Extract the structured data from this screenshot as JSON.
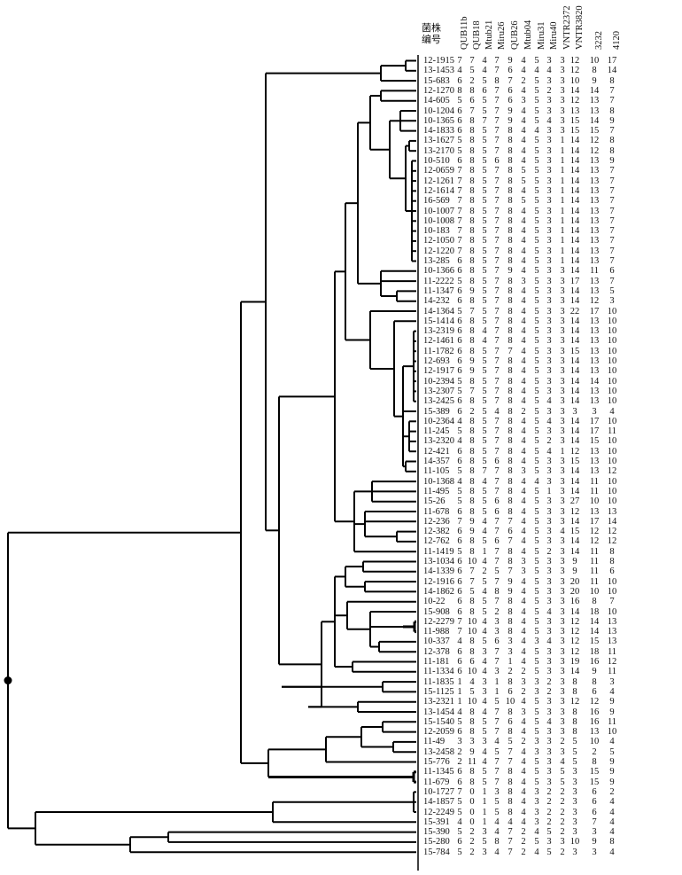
{
  "header": {
    "label_line1": "菌株",
    "label_line2": "编号"
  },
  "columns": [
    "QUB11b",
    "QUB18",
    "Mtub21",
    "Miru26",
    "QUB26",
    "Mtub04",
    "Miru31",
    "Miru40",
    "VNTR2372",
    "VNTR3820",
    "3232",
    "4120"
  ],
  "rows": [
    [
      "12-1915",
      7,
      7,
      4,
      7,
      9,
      4,
      5,
      3,
      3,
      12,
      10,
      17
    ],
    [
      "13-1453",
      4,
      5,
      4,
      7,
      6,
      4,
      4,
      4,
      3,
      12,
      8,
      14
    ],
    [
      "15-683",
      6,
      2,
      5,
      8,
      7,
      2,
      5,
      3,
      3,
      10,
      9,
      8
    ],
    [
      "12-1270",
      8,
      8,
      6,
      7,
      6,
      4,
      5,
      2,
      3,
      14,
      14,
      7
    ],
    [
      "14-605",
      5,
      6,
      5,
      7,
      6,
      3,
      5,
      3,
      3,
      12,
      13,
      7
    ],
    [
      "10-1204",
      6,
      7,
      5,
      7,
      9,
      4,
      5,
      3,
      3,
      13,
      13,
      8
    ],
    [
      "10-1365",
      6,
      8,
      7,
      7,
      9,
      4,
      5,
      4,
      3,
      15,
      14,
      9
    ],
    [
      "14-1833",
      6,
      8,
      5,
      7,
      8,
      4,
      4,
      3,
      3,
      15,
      15,
      7
    ],
    [
      "13-1627",
      5,
      8,
      5,
      7,
      8,
      4,
      5,
      3,
      1,
      14,
      12,
      8
    ],
    [
      "13-2170",
      5,
      8,
      5,
      7,
      8,
      4,
      5,
      3,
      1,
      14,
      12,
      8
    ],
    [
      "10-510",
      6,
      8,
      5,
      6,
      8,
      4,
      5,
      3,
      1,
      14,
      13,
      9
    ],
    [
      "12-0659",
      7,
      8,
      5,
      7,
      8,
      5,
      5,
      3,
      1,
      14,
      13,
      7
    ],
    [
      "12-1261",
      7,
      8,
      5,
      7,
      8,
      5,
      5,
      3,
      1,
      14,
      13,
      7
    ],
    [
      "12-1614",
      7,
      8,
      5,
      7,
      8,
      4,
      5,
      3,
      1,
      14,
      13,
      7
    ],
    [
      "16-569",
      7,
      8,
      5,
      7,
      8,
      5,
      5,
      3,
      1,
      14,
      13,
      7
    ],
    [
      "10-1007",
      7,
      8,
      5,
      7,
      8,
      4,
      5,
      3,
      1,
      14,
      13,
      7
    ],
    [
      "10-1008",
      7,
      8,
      5,
      7,
      8,
      4,
      5,
      3,
      1,
      14,
      13,
      7
    ],
    [
      "10-183",
      7,
      8,
      5,
      7,
      8,
      4,
      5,
      3,
      1,
      14,
      13,
      7
    ],
    [
      "12-1050",
      7,
      8,
      5,
      7,
      8,
      4,
      5,
      3,
      1,
      14,
      13,
      7
    ],
    [
      "12-1220",
      7,
      8,
      5,
      7,
      8,
      4,
      5,
      3,
      1,
      14,
      13,
      7
    ],
    [
      "13-285",
      6,
      8,
      5,
      7,
      8,
      4,
      5,
      3,
      1,
      14,
      13,
      7
    ],
    [
      "10-1366",
      6,
      8,
      5,
      7,
      9,
      4,
      5,
      3,
      3,
      14,
      11,
      6
    ],
    [
      "11-2222",
      5,
      8,
      5,
      7,
      8,
      3,
      5,
      3,
      3,
      17,
      13,
      7
    ],
    [
      "11-1347",
      6,
      9,
      5,
      7,
      8,
      4,
      5,
      3,
      3,
      14,
      13,
      5
    ],
    [
      "14-232",
      6,
      8,
      5,
      7,
      8,
      4,
      5,
      3,
      3,
      14,
      12,
      3
    ],
    [
      "14-1364",
      5,
      7,
      5,
      7,
      8,
      4,
      5,
      3,
      3,
      22,
      17,
      10
    ],
    [
      "15-1414",
      6,
      8,
      5,
      7,
      8,
      4,
      5,
      3,
      3,
      14,
      13,
      10
    ],
    [
      "13-2319",
      6,
      8,
      4,
      7,
      8,
      4,
      5,
      3,
      3,
      14,
      13,
      10
    ],
    [
      "12-1461",
      6,
      8,
      4,
      7,
      8,
      4,
      5,
      3,
      3,
      14,
      13,
      10
    ],
    [
      "11-1782",
      6,
      8,
      5,
      7,
      7,
      4,
      5,
      3,
      3,
      15,
      13,
      10
    ],
    [
      "12-693",
      6,
      9,
      5,
      7,
      8,
      4,
      5,
      3,
      3,
      14,
      13,
      10
    ],
    [
      "12-1917",
      6,
      9,
      5,
      7,
      8,
      4,
      5,
      3,
      3,
      14,
      13,
      10
    ],
    [
      "10-2394",
      5,
      8,
      5,
      7,
      8,
      4,
      5,
      3,
      3,
      14,
      14,
      10
    ],
    [
      "13-2307",
      5,
      7,
      5,
      7,
      8,
      4,
      5,
      3,
      3,
      14,
      13,
      10
    ],
    [
      "13-2425",
      6,
      8,
      5,
      7,
      8,
      4,
      5,
      4,
      3,
      14,
      13,
      10
    ],
    [
      "15-389",
      6,
      2,
      5,
      4,
      8,
      2,
      5,
      3,
      3,
      3,
      3,
      4
    ],
    [
      "10-2364",
      4,
      8,
      5,
      7,
      8,
      4,
      5,
      4,
      3,
      14,
      17,
      10
    ],
    [
      "11-245",
      5,
      8,
      5,
      7,
      8,
      4,
      5,
      3,
      3,
      14,
      17,
      11
    ],
    [
      "13-2320",
      4,
      8,
      5,
      7,
      8,
      4,
      5,
      2,
      3,
      14,
      15,
      10
    ],
    [
      "12-421",
      6,
      8,
      5,
      7,
      8,
      4,
      5,
      4,
      1,
      12,
      13,
      10
    ],
    [
      "14-357",
      6,
      8,
      5,
      6,
      8,
      4,
      5,
      3,
      3,
      15,
      13,
      10
    ],
    [
      "11-105",
      5,
      8,
      7,
      7,
      8,
      3,
      5,
      3,
      3,
      14,
      13,
      12
    ],
    [
      "10-1368",
      4,
      8,
      4,
      7,
      8,
      4,
      4,
      3,
      3,
      14,
      11,
      10
    ],
    [
      "11-495",
      5,
      8,
      5,
      7,
      8,
      4,
      5,
      1,
      3,
      14,
      11,
      10
    ],
    [
      "15-26",
      5,
      8,
      5,
      6,
      8,
      4,
      5,
      3,
      3,
      27,
      10,
      10
    ],
    [
      "11-678",
      6,
      8,
      5,
      6,
      8,
      4,
      5,
      3,
      3,
      12,
      13,
      13
    ],
    [
      "12-236",
      7,
      9,
      4,
      7,
      7,
      4,
      5,
      3,
      3,
      14,
      17,
      14
    ],
    [
      "12-382",
      6,
      9,
      4,
      7,
      6,
      4,
      5,
      3,
      4,
      15,
      12,
      12
    ],
    [
      "12-762",
      6,
      8,
      5,
      6,
      7,
      4,
      5,
      3,
      3,
      14,
      12,
      12
    ],
    [
      "11-1419",
      5,
      8,
      1,
      7,
      8,
      4,
      5,
      2,
      3,
      14,
      11,
      8
    ],
    [
      "13-1034",
      6,
      10,
      4,
      7,
      8,
      3,
      5,
      3,
      3,
      9,
      11,
      8
    ],
    [
      "14-1339",
      6,
      7,
      2,
      5,
      7,
      3,
      5,
      3,
      3,
      9,
      11,
      6
    ],
    [
      "12-1916",
      6,
      7,
      5,
      7,
      9,
      4,
      5,
      3,
      3,
      20,
      11,
      10
    ],
    [
      "14-1862",
      6,
      5,
      4,
      8,
      9,
      4,
      5,
      3,
      3,
      20,
      10,
      10
    ],
    [
      "10-22",
      6,
      8,
      5,
      7,
      8,
      4,
      5,
      3,
      3,
      16,
      8,
      7
    ],
    [
      "15-908",
      6,
      8,
      5,
      2,
      8,
      4,
      5,
      4,
      3,
      14,
      18,
      10
    ],
    [
      "12-2279",
      7,
      10,
      4,
      3,
      8,
      4,
      5,
      3,
      3,
      12,
      14,
      13
    ],
    [
      "11-988",
      7,
      10,
      4,
      3,
      8,
      4,
      5,
      3,
      3,
      12,
      14,
      13
    ],
    [
      "10-337",
      4,
      8,
      5,
      6,
      3,
      4,
      3,
      4,
      3,
      12,
      15,
      13
    ],
    [
      "12-378",
      6,
      8,
      3,
      7,
      3,
      4,
      5,
      3,
      3,
      12,
      18,
      11
    ],
    [
      "11-181",
      6,
      6,
      4,
      7,
      1,
      4,
      5,
      3,
      3,
      19,
      16,
      12
    ],
    [
      "11-1334",
      6,
      10,
      4,
      3,
      2,
      2,
      5,
      3,
      3,
      14,
      9,
      11
    ],
    [
      "11-1835",
      1,
      4,
      3,
      1,
      8,
      3,
      3,
      2,
      3,
      8,
      8,
      3
    ],
    [
      "15-1125",
      1,
      5,
      3,
      1,
      6,
      2,
      3,
      2,
      3,
      8,
      6,
      4
    ],
    [
      "13-2321",
      1,
      10,
      4,
      5,
      10,
      4,
      5,
      3,
      3,
      12,
      12,
      9
    ],
    [
      "13-1454",
      4,
      8,
      4,
      7,
      8,
      3,
      5,
      3,
      3,
      8,
      16,
      9
    ],
    [
      "15-1540",
      5,
      8,
      5,
      7,
      6,
      4,
      5,
      4,
      3,
      8,
      16,
      11
    ],
    [
      "12-2059",
      6,
      8,
      5,
      7,
      8,
      4,
      5,
      3,
      3,
      8,
      13,
      10
    ],
    [
      "11-49",
      3,
      3,
      3,
      4,
      5,
      2,
      3,
      3,
      2,
      5,
      10,
      4
    ],
    [
      "13-2458",
      2,
      9,
      4,
      5,
      7,
      4,
      3,
      3,
      3,
      5,
      2,
      5
    ],
    [
      "15-776",
      2,
      11,
      4,
      7,
      7,
      4,
      5,
      3,
      4,
      5,
      8,
      9
    ],
    [
      "11-1345",
      6,
      8,
      5,
      7,
      8,
      4,
      5,
      3,
      5,
      3,
      15,
      9
    ],
    [
      "11-679",
      6,
      8,
      5,
      7,
      8,
      4,
      5,
      3,
      5,
      3,
      15,
      9
    ],
    [
      "10-1727",
      7,
      0,
      1,
      3,
      8,
      4,
      3,
      2,
      2,
      3,
      6,
      2
    ],
    [
      "14-1857",
      5,
      0,
      1,
      5,
      8,
      4,
      3,
      2,
      2,
      3,
      6,
      4
    ],
    [
      "12-2249",
      5,
      0,
      1,
      5,
      8,
      4,
      3,
      2,
      2,
      3,
      6,
      4
    ],
    [
      "15-391",
      4,
      0,
      1,
      4,
      4,
      4,
      3,
      2,
      2,
      3,
      7,
      4
    ],
    [
      "15-390",
      5,
      2,
      3,
      4,
      7,
      2,
      4,
      5,
      2,
      3,
      3,
      4
    ],
    [
      "15-280",
      6,
      2,
      5,
      8,
      7,
      2,
      5,
      3,
      3,
      10,
      9,
      8
    ],
    [
      "15-784",
      5,
      2,
      3,
      4,
      7,
      2,
      4,
      5,
      2,
      3,
      3,
      4
    ]
  ]
}
